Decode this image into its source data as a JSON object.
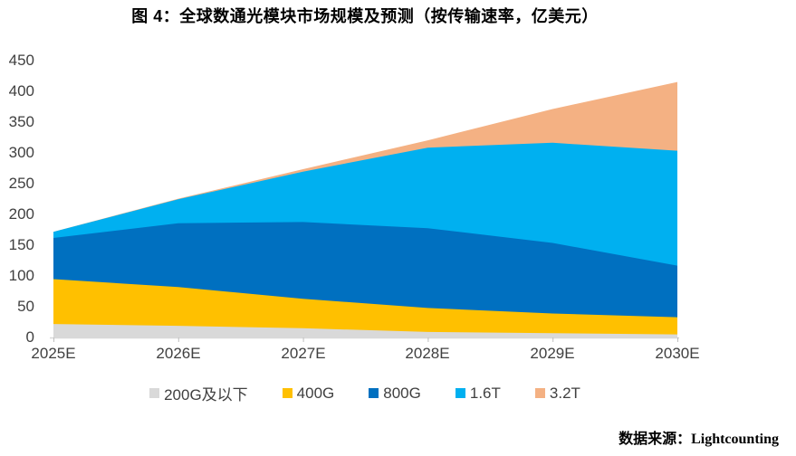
{
  "source": {
    "prefix": "数据来源：",
    "value": "Lightcounting"
  },
  "chart_data": {
    "type": "area",
    "stacked": true,
    "title": "图 4：全球数通光模块市场规模及预测（按传输速率，亿美元）",
    "x": [
      "2025E",
      "2026E",
      "2027E",
      "2028E",
      "2029E",
      "2030E"
    ],
    "series": [
      {
        "name": "200G及以下",
        "color": "#D9D9D9",
        "values": [
          22,
          19,
          15,
          9,
          7,
          5
        ]
      },
      {
        "name": "400G",
        "color": "#FFC000",
        "values": [
          73,
          63,
          48,
          39,
          32,
          28
        ]
      },
      {
        "name": "800G",
        "color": "#0070C0",
        "values": [
          67,
          104,
          125,
          130,
          115,
          84
        ]
      },
      {
        "name": "1.6T",
        "color": "#00B0F0",
        "values": [
          10,
          39,
          82,
          131,
          163,
          187
        ]
      },
      {
        "name": "3.2T",
        "color": "#F4B183",
        "values": [
          0,
          1,
          4,
          12,
          55,
          112
        ]
      }
    ],
    "totals": [
      172,
      226,
      274,
      321,
      372,
      416
    ],
    "ylabel": "",
    "xlabel": "",
    "ylim": [
      0,
      450
    ],
    "y_ticks": [
      0,
      50,
      100,
      150,
      200,
      250,
      300,
      350,
      400,
      450
    ],
    "grid": false,
    "legend_position": "bottom",
    "axis_color": "#D9D9D9",
    "tick_color": "#BFBFBF"
  }
}
